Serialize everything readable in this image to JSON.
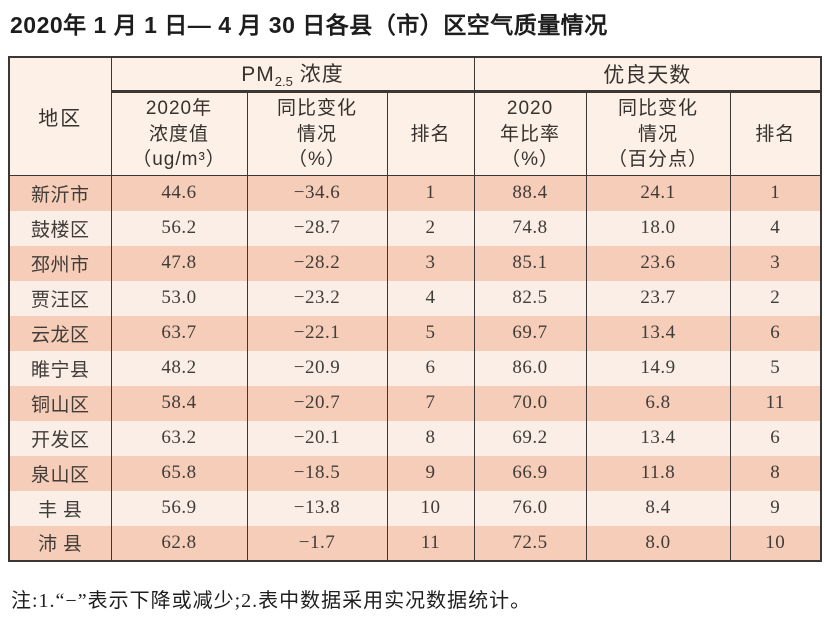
{
  "title": "2020年 1 月 1 日— 4 月 30 日各县（市）区空气质量情况",
  "table": {
    "region_header": "地区",
    "pm_group": {
      "prefix": "PM",
      "sub": "2.5",
      "suffix": " 浓度"
    },
    "good_group": {
      "label": "优良天数"
    },
    "sub_headers": [
      {
        "label": "2020年\n浓度值\n（ug/m³）"
      },
      {
        "label": "同比变化\n情况\n（%）"
      },
      {
        "label": "排名"
      },
      {
        "label": "2020\n年比率\n（%）"
      },
      {
        "label": "同比变化\n情况\n（百分点）"
      },
      {
        "label": "排名"
      }
    ],
    "rows": [
      {
        "region": "新沂市",
        "pm_value": "44.6",
        "pm_change": "−34.6",
        "pm_rank": "1",
        "good_rate": "88.4",
        "good_change": "24.1",
        "good_rank": "1"
      },
      {
        "region": "鼓楼区",
        "pm_value": "56.2",
        "pm_change": "−28.7",
        "pm_rank": "2",
        "good_rate": "74.8",
        "good_change": "18.0",
        "good_rank": "4"
      },
      {
        "region": "邳州市",
        "pm_value": "47.8",
        "pm_change": "−28.2",
        "pm_rank": "3",
        "good_rate": "85.1",
        "good_change": "23.6",
        "good_rank": "3"
      },
      {
        "region": "贾汪区",
        "pm_value": "53.0",
        "pm_change": "−23.2",
        "pm_rank": "4",
        "good_rate": "82.5",
        "good_change": "23.7",
        "good_rank": "2"
      },
      {
        "region": "云龙区",
        "pm_value": "63.7",
        "pm_change": "−22.1",
        "pm_rank": "5",
        "good_rate": "69.7",
        "good_change": "13.4",
        "good_rank": "6"
      },
      {
        "region": "睢宁县",
        "pm_value": "48.2",
        "pm_change": "−20.9",
        "pm_rank": "6",
        "good_rate": "86.0",
        "good_change": "14.9",
        "good_rank": "5"
      },
      {
        "region": "铜山区",
        "pm_value": "58.4",
        "pm_change": "−20.7",
        "pm_rank": "7",
        "good_rate": "70.0",
        "good_change": "6.8",
        "good_rank": "11"
      },
      {
        "region": "开发区",
        "pm_value": "63.2",
        "pm_change": "−20.1",
        "pm_rank": "8",
        "good_rate": "69.2",
        "good_change": "13.4",
        "good_rank": "6"
      },
      {
        "region": "泉山区",
        "pm_value": "65.8",
        "pm_change": "−18.5",
        "pm_rank": "9",
        "good_rate": "66.9",
        "good_change": "11.8",
        "good_rank": "8"
      },
      {
        "region": "丰 县",
        "pm_value": "56.9",
        "pm_change": "−13.8",
        "pm_rank": "10",
        "good_rate": "76.0",
        "good_change": "8.4",
        "good_rank": "9"
      },
      {
        "region": "沛 县",
        "pm_value": "62.8",
        "pm_change": "−1.7",
        "pm_rank": "11",
        "good_rate": "72.5",
        "good_change": "8.0",
        "good_rank": "10"
      }
    ]
  },
  "footnote": "注:1.“−”表示下降或减少;2.表中数据采用实况数据统计。",
  "colors": {
    "row_odd": "#f6cdb9",
    "row_even": "#fbeee7",
    "header_bg": "#fcf0e7",
    "border": "#3b3734"
  }
}
